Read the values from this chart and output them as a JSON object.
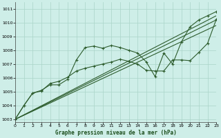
{
  "xlabel": "Graphe pression niveau de la mer (hPa)",
  "bg_color": "#ceeee8",
  "line_color": "#2d5c2d",
  "grid_color": "#aad4c8",
  "xlim": [
    0,
    23
  ],
  "ylim": [
    1002.8,
    1011.5
  ],
  "xticks": [
    0,
    1,
    2,
    3,
    4,
    5,
    6,
    7,
    8,
    9,
    10,
    11,
    12,
    13,
    14,
    15,
    16,
    17,
    18,
    19,
    20,
    21,
    22,
    23
  ],
  "yticks": [
    1003,
    1004,
    1005,
    1006,
    1007,
    1008,
    1009,
    1010,
    1011
  ],
  "series": [
    {
      "x": [
        0,
        1,
        2,
        3,
        4,
        5,
        6,
        7,
        8,
        9,
        10,
        11,
        12,
        13,
        14,
        15,
        16,
        17,
        18,
        19,
        20,
        21,
        22,
        23
      ],
      "y": [
        1003.0,
        1004.0,
        1004.9,
        1005.1,
        1005.5,
        1005.5,
        1005.9,
        1007.3,
        1008.2,
        1008.3,
        1008.15,
        1008.35,
        1008.2,
        1008.0,
        1007.8,
        1007.15,
        1006.1,
        1007.8,
        1007.0,
        1008.6,
        1009.7,
        1010.2,
        1010.5,
        1010.8
      ],
      "has_markers": true
    },
    {
      "x": [
        0,
        1,
        2,
        3,
        4,
        5,
        6,
        7,
        8,
        9,
        10,
        11,
        12,
        13,
        14,
        15,
        16,
        17,
        18,
        19,
        20,
        21,
        22,
        23
      ],
      "y": [
        1003.0,
        1004.0,
        1004.9,
        1005.05,
        1005.6,
        1005.75,
        1006.05,
        1006.5,
        1006.7,
        1006.85,
        1007.0,
        1007.15,
        1007.35,
        1007.2,
        1007.0,
        1006.55,
        1006.5,
        1006.5,
        1007.3,
        1007.3,
        1007.25,
        1007.85,
        1008.5,
        1010.25
      ],
      "has_markers": true
    },
    {
      "x": [
        0,
        23
      ],
      "y": [
        1003.0,
        1010.5
      ],
      "has_markers": false
    },
    {
      "x": [
        0,
        23
      ],
      "y": [
        1003.0,
        1010.2
      ],
      "has_markers": false
    },
    {
      "x": [
        0,
        23
      ],
      "y": [
        1003.0,
        1009.8
      ],
      "has_markers": false
    }
  ]
}
